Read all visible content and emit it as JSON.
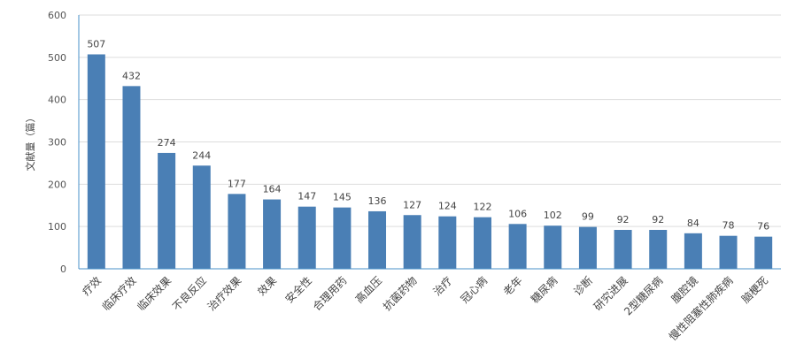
{
  "chart_data": {
    "type": "bar",
    "title": "",
    "xlabel": "",
    "ylabel": "文献量（篇）",
    "ylim": [
      0,
      600
    ],
    "yticks": [
      0,
      100,
      200,
      300,
      400,
      500,
      600
    ],
    "grid": true,
    "colors": {
      "bar": "#4a7fb5",
      "grid": "#dddddd",
      "axis": "#4a90c8"
    },
    "categories": [
      "疗效",
      "临床疗效",
      "临床效果",
      "不良反应",
      "治疗效果",
      "效果",
      "安全性",
      "合理用药",
      "高血压",
      "抗菌药物",
      "治疗",
      "冠心病",
      "老年",
      "糖尿病",
      "诊断",
      "研究进展",
      "2型糖尿病",
      "腹腔镜",
      "慢性阻塞性肺疾病",
      "脑梗死"
    ],
    "values": [
      507,
      432,
      274,
      244,
      177,
      164,
      147,
      145,
      136,
      127,
      124,
      122,
      106,
      102,
      99,
      92,
      92,
      84,
      78,
      76
    ]
  }
}
